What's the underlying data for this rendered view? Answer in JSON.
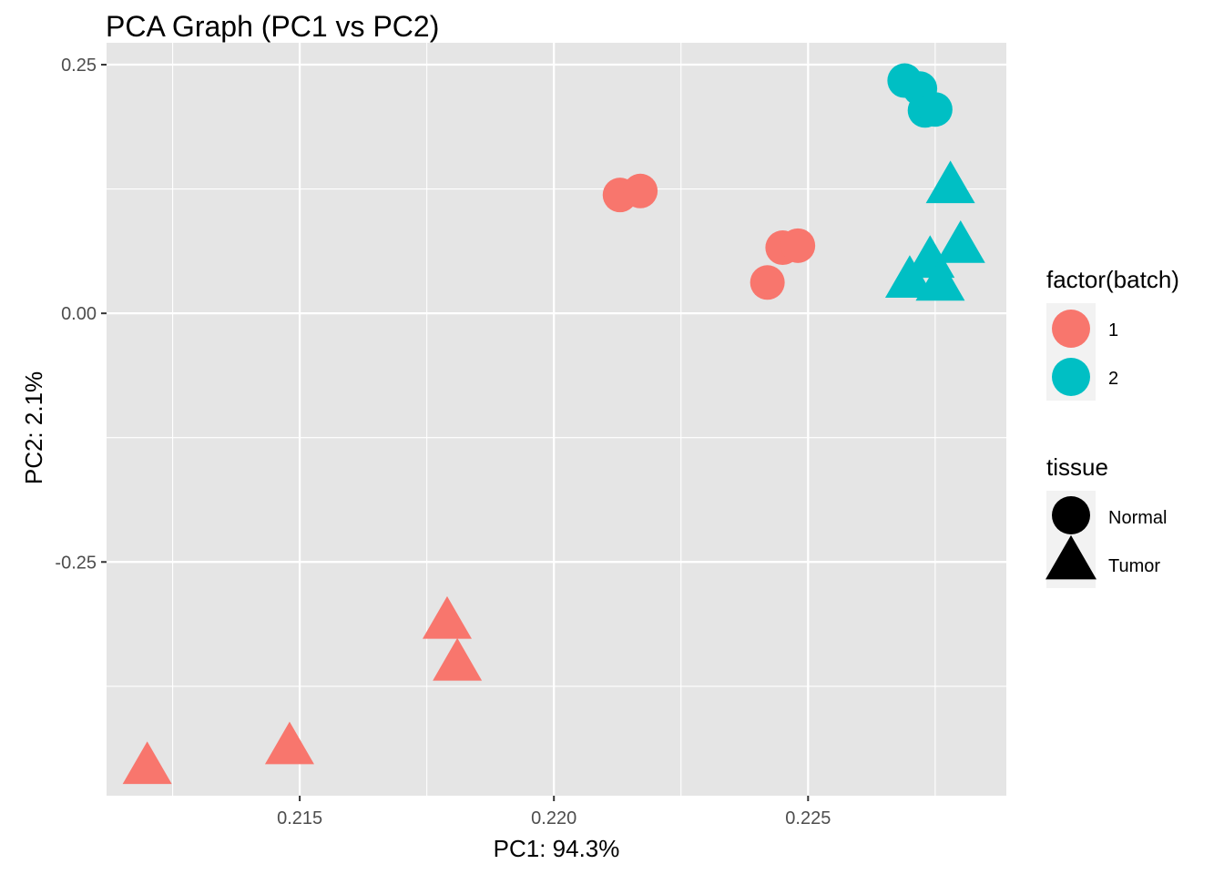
{
  "chart_data": {
    "type": "scatter",
    "title": "PCA Graph (PC1 vs PC2)",
    "xlabel": "PC1: 94.3%",
    "ylabel": "PC2: 2.1%",
    "xlim": [
      0.2112,
      0.2289
    ],
    "ylim": [
      -0.485,
      0.272
    ],
    "x_ticks": [
      {
        "value": 0.215,
        "label": "0.215"
      },
      {
        "value": 0.22,
        "label": "0.220"
      },
      {
        "value": 0.225,
        "label": "0.225"
      }
    ],
    "y_ticks": [
      {
        "value": 0.25,
        "label": "0.25"
      },
      {
        "value": 0.0,
        "label": "0.00"
      },
      {
        "value": -0.25,
        "label": "-0.25"
      }
    ],
    "grid": true,
    "background": "#e5e5e5",
    "legends": [
      {
        "title": "factor(batch)",
        "kind": "color",
        "entries": [
          {
            "label": "1",
            "color": "#f8766d"
          },
          {
            "label": "2",
            "color": "#00bfc4"
          }
        ]
      },
      {
        "title": "tissue",
        "kind": "shape",
        "entries": [
          {
            "label": "Normal",
            "shape": "circle"
          },
          {
            "label": "Tumor",
            "shape": "triangle"
          }
        ]
      }
    ],
    "legend_position": "right",
    "points": [
      {
        "x": 0.2213,
        "y": 0.119,
        "batch": "1",
        "tissue": "Normal"
      },
      {
        "x": 0.2217,
        "y": 0.123,
        "batch": "1",
        "tissue": "Normal"
      },
      {
        "x": 0.2245,
        "y": 0.066,
        "batch": "1",
        "tissue": "Normal"
      },
      {
        "x": 0.2248,
        "y": 0.068,
        "batch": "1",
        "tissue": "Normal"
      },
      {
        "x": 0.2242,
        "y": 0.031,
        "batch": "1",
        "tissue": "Normal"
      },
      {
        "x": 0.2269,
        "y": 0.234,
        "batch": "2",
        "tissue": "Normal"
      },
      {
        "x": 0.2272,
        "y": 0.226,
        "batch": "2",
        "tissue": "Normal"
      },
      {
        "x": 0.2273,
        "y": 0.204,
        "batch": "2",
        "tissue": "Normal"
      },
      {
        "x": 0.2275,
        "y": 0.205,
        "batch": "2",
        "tissue": "Normal"
      },
      {
        "x": 0.2278,
        "y": 0.127,
        "batch": "2",
        "tissue": "Tumor"
      },
      {
        "x": 0.228,
        "y": 0.067,
        "batch": "2",
        "tissue": "Tumor"
      },
      {
        "x": 0.2274,
        "y": 0.052,
        "batch": "2",
        "tissue": "Tumor"
      },
      {
        "x": 0.227,
        "y": 0.032,
        "batch": "2",
        "tissue": "Tumor"
      },
      {
        "x": 0.2276,
        "y": 0.029,
        "batch": "2",
        "tissue": "Tumor"
      },
      {
        "x": 0.2179,
        "y": -0.311,
        "batch": "1",
        "tissue": "Tumor"
      },
      {
        "x": 0.2181,
        "y": -0.353,
        "batch": "1",
        "tissue": "Tumor"
      },
      {
        "x": 0.2148,
        "y": -0.437,
        "batch": "1",
        "tissue": "Tumor"
      },
      {
        "x": 0.212,
        "y": -0.457,
        "batch": "1",
        "tissue": "Tumor"
      }
    ]
  }
}
